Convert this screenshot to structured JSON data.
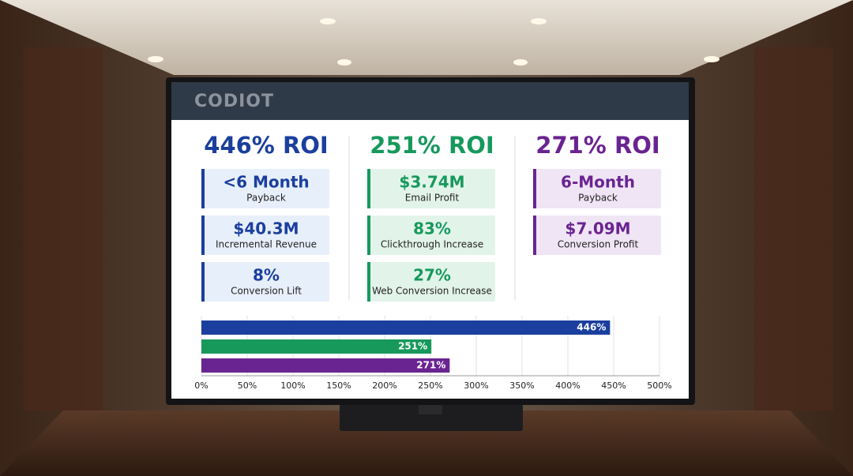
{
  "header": {
    "logo": "CODIOT"
  },
  "columns": [
    {
      "title": "446% ROI",
      "color": "#1b3f9e",
      "tint": "#e7effb",
      "cards": [
        {
          "value": "<6 Month",
          "label": "Payback"
        },
        {
          "value": "$40.3M",
          "label": "Incremental Revenue"
        },
        {
          "value": "8%",
          "label": "Conversion Lift"
        }
      ]
    },
    {
      "title": "251% ROI",
      "color": "#17995c",
      "tint": "#e2f4ea",
      "cards": [
        {
          "value": "$3.74M",
          "label": "Email Profit"
        },
        {
          "value": "83%",
          "label": "Clickthrough Increase"
        },
        {
          "value": "27%",
          "label": "Web Conversion Increase"
        }
      ]
    },
    {
      "title": "271% ROI",
      "color": "#6a2491",
      "tint": "#efe5f5",
      "cards": [
        {
          "value": "6-Month",
          "label": "Payback"
        },
        {
          "value": "$7.09M",
          "label": "Conversion Profit"
        }
      ]
    }
  ],
  "chart_data": {
    "type": "hbar",
    "values": [
      446,
      251,
      271
    ],
    "value_labels": [
      "446%",
      "251%",
      "271%"
    ],
    "colors": [
      "#1b3f9e",
      "#17995c",
      "#6a2491"
    ],
    "xlim": [
      0,
      500
    ],
    "xticks": [
      {
        "value": 0,
        "label": "0%"
      },
      {
        "value": 50,
        "label": "50%"
      },
      {
        "value": 100,
        "label": "100%"
      },
      {
        "value": 150,
        "label": "150%"
      },
      {
        "value": 200,
        "label": "200%"
      },
      {
        "value": 250,
        "label": "250%"
      },
      {
        "value": 300,
        "label": "300%"
      },
      {
        "value": 350,
        "label": "350%"
      },
      {
        "value": 400,
        "label": "400%"
      },
      {
        "value": 450,
        "label": "450%"
      },
      {
        "value": 500,
        "label": "500%"
      }
    ],
    "grid": true
  }
}
